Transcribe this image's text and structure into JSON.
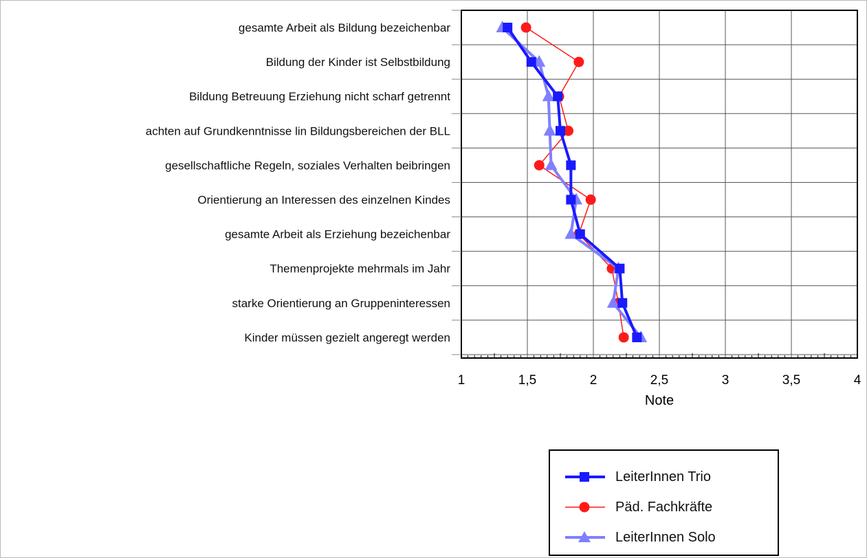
{
  "chart_data": {
    "type": "line",
    "orientation": "horizontal",
    "xlabel": "Note",
    "xlim": [
      1,
      4
    ],
    "x_ticks": [
      "1",
      "1,5",
      "2",
      "2,5",
      "3",
      "3,5",
      "4"
    ],
    "x_tick_values": [
      1,
      1.5,
      2,
      2.5,
      3,
      3.5,
      4
    ],
    "grid": true,
    "legend_position": "bottom-right",
    "categories": [
      "gesamte Arbeit als Bildung bezeichenbar",
      "Bildung der Kinder ist Selbstbildung",
      "Bildung Betreuung Erziehung nicht scharf getrennt",
      "achten auf Grundkenntnisse lin Bildungsbereichen der BLL",
      "gesellschaftliche Regeln, soziales Verhalten beibringen",
      "Orientierung an Interessen des einzelnen Kindes",
      "gesamte Arbeit als Erziehung bezeichenbar",
      "Themenprojekte mehrmals im Jahr",
      "starke Orientierung an Gruppeninteressen",
      "Kinder müssen gezielt angeregt werden"
    ],
    "series": [
      {
        "name": "LeiterInnen Trio",
        "color": "#1a1aff",
        "marker": "square",
        "values": [
          1.35,
          1.53,
          1.73,
          1.75,
          1.83,
          1.83,
          1.9,
          2.2,
          2.22,
          2.33
        ]
      },
      {
        "name": "Päd. Fachkräfte",
        "color": "#ff1a1a",
        "marker": "circle",
        "values": [
          1.49,
          1.89,
          1.74,
          1.81,
          1.59,
          1.98,
          1.89,
          2.14,
          2.19,
          2.23
        ]
      },
      {
        "name": "LeiterInnen Solo",
        "color": "#8080ff",
        "marker": "triangle",
        "values": [
          1.31,
          1.59,
          1.66,
          1.67,
          1.68,
          1.87,
          1.83,
          2.19,
          2.15,
          2.36
        ]
      }
    ]
  }
}
